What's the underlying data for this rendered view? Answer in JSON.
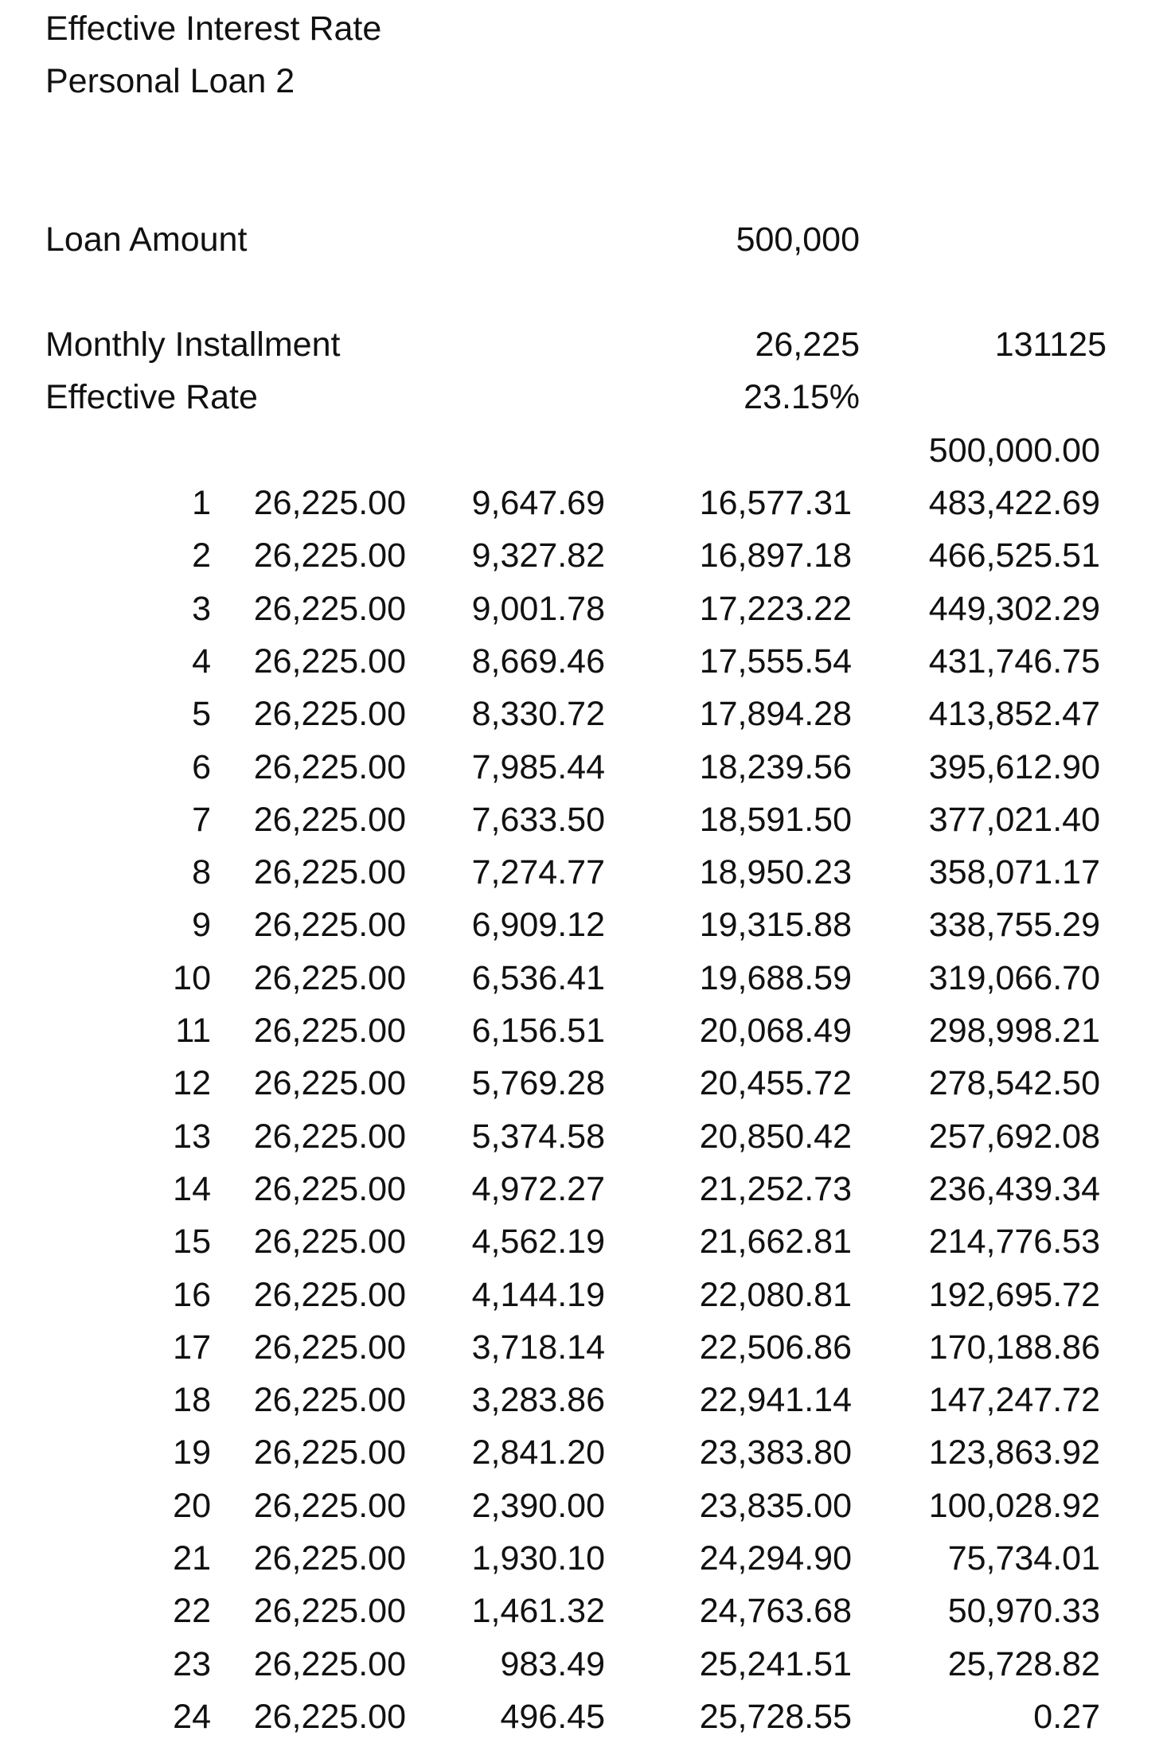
{
  "header": {
    "title": "Effective Interest Rate",
    "subtitle": "Personal Loan 2"
  },
  "summary": {
    "loan_amount_label": "Loan Amount",
    "loan_amount_value": "500,000",
    "monthly_installment_label": "Monthly Installment",
    "monthly_installment_value": "26,225",
    "monthly_installment_extra": "131125",
    "effective_rate_label": "Effective Rate",
    "effective_rate_value": "23.15%"
  },
  "schedule": {
    "opening_balance": "500,000.00",
    "rows": [
      {
        "period": "1",
        "payment": "26,225.00",
        "interest": "9,647.69",
        "principal": "16,577.31",
        "balance": "483,422.69"
      },
      {
        "period": "2",
        "payment": "26,225.00",
        "interest": "9,327.82",
        "principal": "16,897.18",
        "balance": "466,525.51"
      },
      {
        "period": "3",
        "payment": "26,225.00",
        "interest": "9,001.78",
        "principal": "17,223.22",
        "balance": "449,302.29"
      },
      {
        "period": "4",
        "payment": "26,225.00",
        "interest": "8,669.46",
        "principal": "17,555.54",
        "balance": "431,746.75"
      },
      {
        "period": "5",
        "payment": "26,225.00",
        "interest": "8,330.72",
        "principal": "17,894.28",
        "balance": "413,852.47"
      },
      {
        "period": "6",
        "payment": "26,225.00",
        "interest": "7,985.44",
        "principal": "18,239.56",
        "balance": "395,612.90"
      },
      {
        "period": "7",
        "payment": "26,225.00",
        "interest": "7,633.50",
        "principal": "18,591.50",
        "balance": "377,021.40"
      },
      {
        "period": "8",
        "payment": "26,225.00",
        "interest": "7,274.77",
        "principal": "18,950.23",
        "balance": "358,071.17"
      },
      {
        "period": "9",
        "payment": "26,225.00",
        "interest": "6,909.12",
        "principal": "19,315.88",
        "balance": "338,755.29"
      },
      {
        "period": "10",
        "payment": "26,225.00",
        "interest": "6,536.41",
        "principal": "19,688.59",
        "balance": "319,066.70"
      },
      {
        "period": "11",
        "payment": "26,225.00",
        "interest": "6,156.51",
        "principal": "20,068.49",
        "balance": "298,998.21"
      },
      {
        "period": "12",
        "payment": "26,225.00",
        "interest": "5,769.28",
        "principal": "20,455.72",
        "balance": "278,542.50"
      },
      {
        "period": "13",
        "payment": "26,225.00",
        "interest": "5,374.58",
        "principal": "20,850.42",
        "balance": "257,692.08"
      },
      {
        "period": "14",
        "payment": "26,225.00",
        "interest": "4,972.27",
        "principal": "21,252.73",
        "balance": "236,439.34"
      },
      {
        "period": "15",
        "payment": "26,225.00",
        "interest": "4,562.19",
        "principal": "21,662.81",
        "balance": "214,776.53"
      },
      {
        "period": "16",
        "payment": "26,225.00",
        "interest": "4,144.19",
        "principal": "22,080.81",
        "balance": "192,695.72"
      },
      {
        "period": "17",
        "payment": "26,225.00",
        "interest": "3,718.14",
        "principal": "22,506.86",
        "balance": "170,188.86"
      },
      {
        "period": "18",
        "payment": "26,225.00",
        "interest": "3,283.86",
        "principal": "22,941.14",
        "balance": "147,247.72"
      },
      {
        "period": "19",
        "payment": "26,225.00",
        "interest": "2,841.20",
        "principal": "23,383.80",
        "balance": "123,863.92"
      },
      {
        "period": "20",
        "payment": "26,225.00",
        "interest": "2,390.00",
        "principal": "23,835.00",
        "balance": "100,028.92"
      },
      {
        "period": "21",
        "payment": "26,225.00",
        "interest": "1,930.10",
        "principal": "24,294.90",
        "balance": "75,734.01"
      },
      {
        "period": "22",
        "payment": "26,225.00",
        "interest": "1,461.32",
        "principal": "24,763.68",
        "balance": "50,970.33"
      },
      {
        "period": "23",
        "payment": "26,225.00",
        "interest": "983.49",
        "principal": "25,241.51",
        "balance": "25,728.82"
      },
      {
        "period": "24",
        "payment": "26,225.00",
        "interest": "496.45",
        "principal": "25,728.55",
        "balance": "0.27"
      }
    ]
  }
}
